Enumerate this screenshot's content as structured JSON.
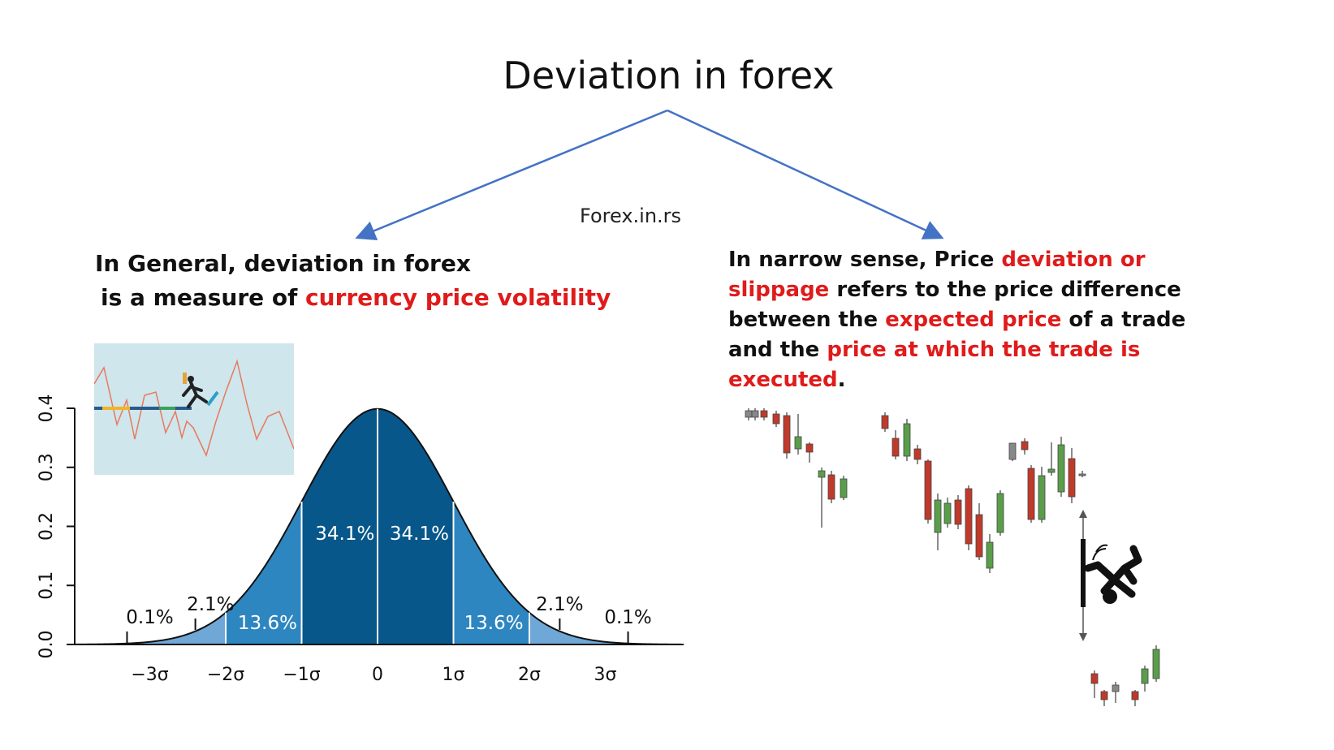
{
  "title": "Deviation in forex",
  "watermark": "Forex.in.rs",
  "left_text": {
    "line1": "In General, deviation in forex",
    "line2_pre": "is a measure of ",
    "line2_red": "currency price volatility"
  },
  "right_text": {
    "seg1": "In narrow sense, Price ",
    "seg2": "deviation or slippage",
    "seg3": " refers to the price difference between the ",
    "seg4": "expected price",
    "seg5": " of a trade and the ",
    "seg6": "price at which the trade is executed",
    "seg7": "."
  },
  "colors": {
    "accent_red": "#e01b1b",
    "arrow_blue": "#4472c4",
    "bell_dark": "#08578b",
    "bell_mid": "#2e86c1",
    "bell_light": "#6fa8d6",
    "candle_red": "#c0392b",
    "candle_green": "#5a9e4a"
  },
  "chart_data": {
    "type": "area",
    "title": "",
    "xlabel": "",
    "ylabel": "",
    "ylim": [
      0.0,
      0.4
    ],
    "y_ticks": [
      "0.0",
      "0.1",
      "0.2",
      "0.3",
      "0.4"
    ],
    "x_ticks": [
      "−3σ",
      "−2σ",
      "−1σ",
      "0",
      "1σ",
      "2σ",
      "3σ"
    ],
    "x_tick_values": [
      -3,
      -2,
      -1,
      0,
      1,
      2,
      3
    ],
    "regions": [
      {
        "range": [
          -1,
          0
        ],
        "label": "34.1%",
        "value": 34.1
      },
      {
        "range": [
          0,
          1
        ],
        "label": "34.1%",
        "value": 34.1
      },
      {
        "range": [
          -2,
          -1
        ],
        "label": "13.6%",
        "value": 13.6
      },
      {
        "range": [
          1,
          2
        ],
        "label": "13.6%",
        "value": 13.6
      },
      {
        "range": [
          -3,
          -2
        ],
        "label": "2.1%",
        "value": 2.1
      },
      {
        "range": [
          2,
          3
        ],
        "label": "2.1%",
        "value": 2.1
      },
      {
        "range": [
          -4,
          -3
        ],
        "label": "0.1%",
        "value": 0.1
      },
      {
        "range": [
          3,
          4
        ],
        "label": "0.1%",
        "value": 0.1
      }
    ],
    "curve": "standard normal density"
  }
}
